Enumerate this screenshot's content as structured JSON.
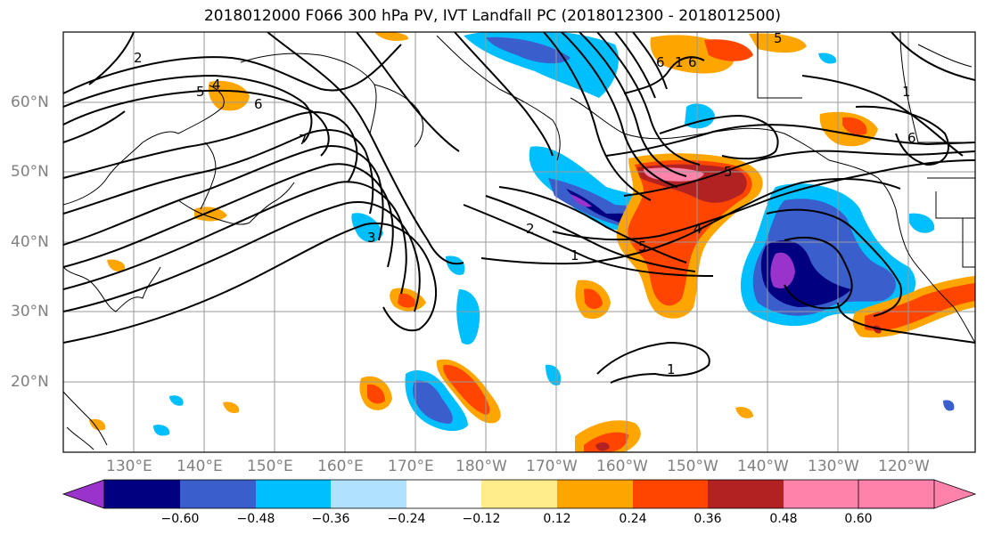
{
  "title": "2018012000 F066 300 hPa PV, IVT Landfall PC (2018012300 - 2018012500)",
  "lat_labels": [
    "60°N",
    "50°N",
    "40°N",
    "30°N",
    "20°N"
  ],
  "lon_labels": [
    "130°E",
    "140°E",
    "150°E",
    "160°E",
    "170°E",
    "180°W",
    "170°W",
    "160°W",
    "150°W",
    "140°W",
    "130°W",
    "120°W"
  ],
  "contour_labels": [
    "2",
    "4",
    "5",
    "6",
    "7",
    "3",
    "2",
    "1",
    "5",
    "4",
    "5",
    "6",
    "1",
    "6",
    "5",
    "6",
    "1",
    "1"
  ],
  "colorbar": {
    "colors": [
      "#9933cc",
      "#000080",
      "#3a5fcd",
      "#00bfff",
      "#b0e2ff",
      "#ffffff",
      "#ffec8b",
      "#ffa500",
      "#ff4500",
      "#b22222",
      "#ff82ab"
    ],
    "tick_labels": [
      "−0.60",
      "−0.48",
      "−0.36",
      "−0.24",
      "−0.12",
      "0.12",
      "0.24",
      "0.36",
      "0.48",
      "0.60"
    ]
  }
}
